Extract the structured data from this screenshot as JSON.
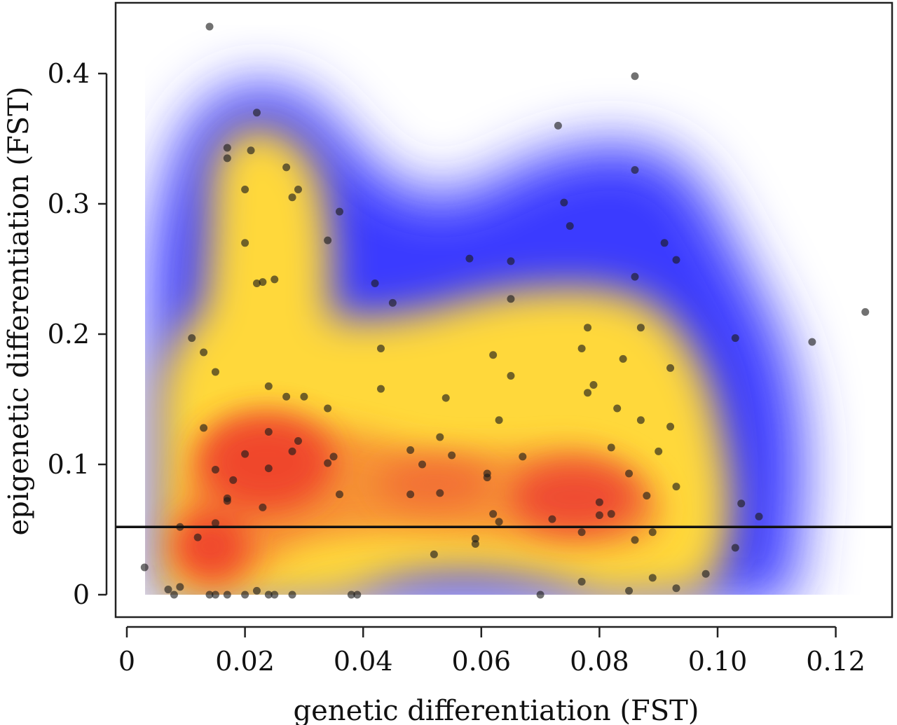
{
  "chart_data": {
    "type": "scatter",
    "title": "",
    "xlabel": "genetic differentiation (FST)",
    "ylabel": "epigenetic differentiation (FST)",
    "xlim": [
      -0.001,
      0.128
    ],
    "ylim": [
      -0.01,
      0.455
    ],
    "x_ticks": [
      0,
      0.02,
      0.04,
      0.06,
      0.08,
      0.1,
      0.12
    ],
    "x_tick_labels": [
      "0",
      "0.02",
      "0.04",
      "0.06",
      "0.08",
      "0.10",
      "0.12"
    ],
    "y_ticks": [
      0,
      0.1,
      0.2,
      0.3,
      0.4
    ],
    "y_tick_labels": [
      "0",
      "0.1",
      "0.2",
      "0.3",
      "0.4"
    ],
    "reference_line_y": 0.052,
    "background": "2D kernel density (blue = low, yellow = medium, red = high)",
    "density_colors": {
      "low": "#3b3bff",
      "mid": "#ffd83a",
      "high": "#ee2a2a"
    },
    "point_color": "#1a1a1a",
    "points": [
      {
        "x": 0.014,
        "y": 0.436
      },
      {
        "x": 0.022,
        "y": 0.37
      },
      {
        "x": 0.017,
        "y": 0.343
      },
      {
        "x": 0.021,
        "y": 0.341
      },
      {
        "x": 0.017,
        "y": 0.335
      },
      {
        "x": 0.027,
        "y": 0.328
      },
      {
        "x": 0.02,
        "y": 0.311
      },
      {
        "x": 0.029,
        "y": 0.311
      },
      {
        "x": 0.028,
        "y": 0.305
      },
      {
        "x": 0.036,
        "y": 0.294
      },
      {
        "x": 0.034,
        "y": 0.272
      },
      {
        "x": 0.02,
        "y": 0.27
      },
      {
        "x": 0.025,
        "y": 0.242
      },
      {
        "x": 0.022,
        "y": 0.239
      },
      {
        "x": 0.023,
        "y": 0.24
      },
      {
        "x": 0.042,
        "y": 0.239
      },
      {
        "x": 0.045,
        "y": 0.224
      },
      {
        "x": 0.011,
        "y": 0.197
      },
      {
        "x": 0.013,
        "y": 0.186
      },
      {
        "x": 0.043,
        "y": 0.189
      },
      {
        "x": 0.015,
        "y": 0.171
      },
      {
        "x": 0.024,
        "y": 0.16
      },
      {
        "x": 0.043,
        "y": 0.158
      },
      {
        "x": 0.027,
        "y": 0.152
      },
      {
        "x": 0.03,
        "y": 0.152
      },
      {
        "x": 0.034,
        "y": 0.143
      },
      {
        "x": 0.013,
        "y": 0.128
      },
      {
        "x": 0.024,
        "y": 0.125
      },
      {
        "x": 0.029,
        "y": 0.118
      },
      {
        "x": 0.028,
        "y": 0.11
      },
      {
        "x": 0.02,
        "y": 0.108
      },
      {
        "x": 0.035,
        "y": 0.106
      },
      {
        "x": 0.034,
        "y": 0.101
      },
      {
        "x": 0.024,
        "y": 0.097
      },
      {
        "x": 0.015,
        "y": 0.096
      },
      {
        "x": 0.018,
        "y": 0.088
      },
      {
        "x": 0.036,
        "y": 0.077
      },
      {
        "x": 0.017,
        "y": 0.074
      },
      {
        "x": 0.017,
        "y": 0.072
      },
      {
        "x": 0.023,
        "y": 0.067
      },
      {
        "x": 0.015,
        "y": 0.055
      },
      {
        "x": 0.009,
        "y": 0.052
      },
      {
        "x": 0.012,
        "y": 0.044
      },
      {
        "x": 0.003,
        "y": 0.021
      },
      {
        "x": 0.007,
        "y": 0.004
      },
      {
        "x": 0.009,
        "y": 0.006
      },
      {
        "x": 0.022,
        "y": 0.003
      },
      {
        "x": 0.008,
        "y": 0.0
      },
      {
        "x": 0.014,
        "y": 0.0
      },
      {
        "x": 0.015,
        "y": 0.0
      },
      {
        "x": 0.017,
        "y": 0.0
      },
      {
        "x": 0.02,
        "y": 0.0
      },
      {
        "x": 0.024,
        "y": 0.0
      },
      {
        "x": 0.025,
        "y": 0.0
      },
      {
        "x": 0.028,
        "y": 0.0
      },
      {
        "x": 0.038,
        "y": 0.0
      },
      {
        "x": 0.039,
        "y": 0.0
      },
      {
        "x": 0.058,
        "y": 0.258
      },
      {
        "x": 0.065,
        "y": 0.256
      },
      {
        "x": 0.065,
        "y": 0.227
      },
      {
        "x": 0.062,
        "y": 0.184
      },
      {
        "x": 0.065,
        "y": 0.168
      },
      {
        "x": 0.054,
        "y": 0.151
      },
      {
        "x": 0.063,
        "y": 0.134
      },
      {
        "x": 0.053,
        "y": 0.121
      },
      {
        "x": 0.048,
        "y": 0.111
      },
      {
        "x": 0.055,
        "y": 0.107
      },
      {
        "x": 0.067,
        "y": 0.106
      },
      {
        "x": 0.05,
        "y": 0.1
      },
      {
        "x": 0.061,
        "y": 0.093
      },
      {
        "x": 0.061,
        "y": 0.09
      },
      {
        "x": 0.048,
        "y": 0.077
      },
      {
        "x": 0.053,
        "y": 0.078
      },
      {
        "x": 0.062,
        "y": 0.062
      },
      {
        "x": 0.063,
        "y": 0.056
      },
      {
        "x": 0.059,
        "y": 0.043
      },
      {
        "x": 0.059,
        "y": 0.039
      },
      {
        "x": 0.052,
        "y": 0.031
      },
      {
        "x": 0.07,
        "y": 0.0
      },
      {
        "x": 0.073,
        "y": 0.36
      },
      {
        "x": 0.086,
        "y": 0.398
      },
      {
        "x": 0.086,
        "y": 0.326
      },
      {
        "x": 0.074,
        "y": 0.301
      },
      {
        "x": 0.075,
        "y": 0.283
      },
      {
        "x": 0.091,
        "y": 0.27
      },
      {
        "x": 0.093,
        "y": 0.257
      },
      {
        "x": 0.086,
        "y": 0.244
      },
      {
        "x": 0.078,
        "y": 0.205
      },
      {
        "x": 0.087,
        "y": 0.205
      },
      {
        "x": 0.077,
        "y": 0.189
      },
      {
        "x": 0.084,
        "y": 0.181
      },
      {
        "x": 0.092,
        "y": 0.174
      },
      {
        "x": 0.079,
        "y": 0.161
      },
      {
        "x": 0.078,
        "y": 0.155
      },
      {
        "x": 0.083,
        "y": 0.143
      },
      {
        "x": 0.087,
        "y": 0.134
      },
      {
        "x": 0.092,
        "y": 0.129
      },
      {
        "x": 0.082,
        "y": 0.113
      },
      {
        "x": 0.09,
        "y": 0.11
      },
      {
        "x": 0.085,
        "y": 0.093
      },
      {
        "x": 0.093,
        "y": 0.083
      },
      {
        "x": 0.088,
        "y": 0.076
      },
      {
        "x": 0.08,
        "y": 0.071
      },
      {
        "x": 0.08,
        "y": 0.061
      },
      {
        "x": 0.082,
        "y": 0.062
      },
      {
        "x": 0.072,
        "y": 0.058
      },
      {
        "x": 0.077,
        "y": 0.048
      },
      {
        "x": 0.089,
        "y": 0.048
      },
      {
        "x": 0.086,
        "y": 0.042
      },
      {
        "x": 0.077,
        "y": 0.01
      },
      {
        "x": 0.089,
        "y": 0.013
      },
      {
        "x": 0.093,
        "y": 0.005
      },
      {
        "x": 0.085,
        "y": 0.003
      },
      {
        "x": 0.098,
        "y": 0.016
      },
      {
        "x": 0.104,
        "y": 0.07
      },
      {
        "x": 0.107,
        "y": 0.06
      },
      {
        "x": 0.103,
        "y": 0.036
      },
      {
        "x": 0.103,
        "y": 0.197
      },
      {
        "x": 0.116,
        "y": 0.194
      },
      {
        "x": 0.125,
        "y": 0.217
      }
    ]
  }
}
